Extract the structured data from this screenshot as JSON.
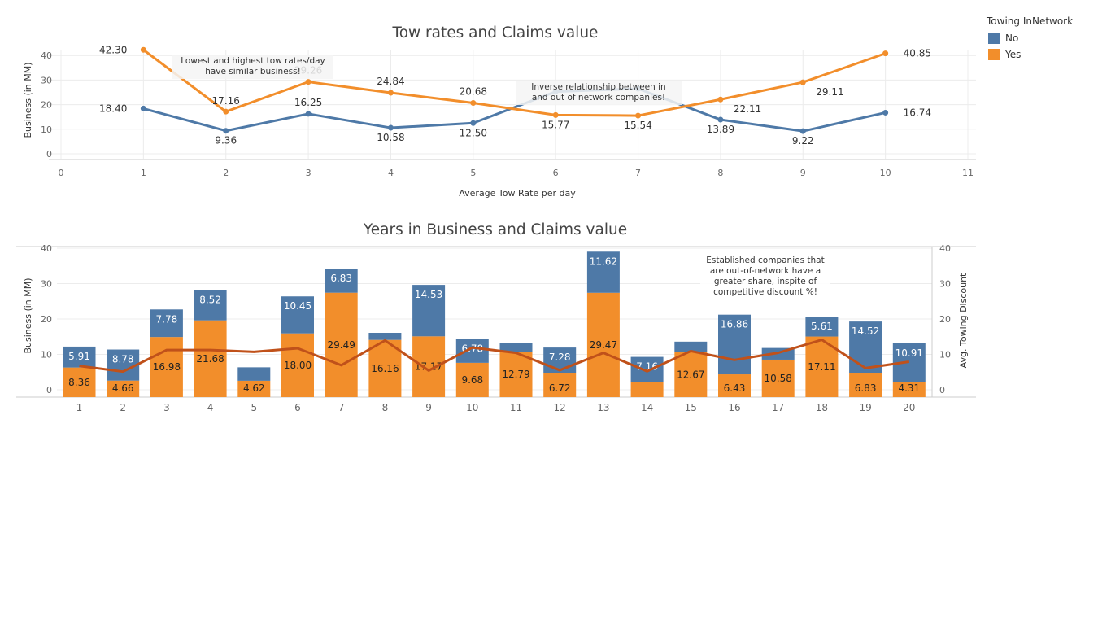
{
  "colors": {
    "no": "#4e79a7",
    "yes": "#f28e2b",
    "discount_line": "#c0511a",
    "grid": "#ececec",
    "axis": "#cccccc",
    "tick": "#666666"
  },
  "legend": {
    "title": "Towing InNetwork",
    "items": [
      {
        "label": "No",
        "color": "#4e79a7"
      },
      {
        "label": "Yes",
        "color": "#f28e2b"
      }
    ]
  },
  "annotations": {
    "top_left": "Lowest and highest tow rates/day\nhave similar business!",
    "top_mid": "Inverse relationship between in\nand out of network companies!",
    "bottom_right": "Established companies that\nare out-of-network have a\ngreater share, inspite of\ncompetitive discount %!"
  },
  "chart_data": [
    {
      "type": "line",
      "title": "Tow rates and Claims value",
      "xlabel": "Average Tow Rate per day",
      "ylabel": "Business (in MM)",
      "xlim": [
        0,
        11
      ],
      "ylim": [
        0,
        45
      ],
      "x_ticks": [
        0,
        1,
        2,
        3,
        4,
        5,
        6,
        7,
        8,
        9,
        10,
        11
      ],
      "y_ticks": [
        0,
        10,
        20,
        30,
        40
      ],
      "x": [
        1,
        2,
        3,
        4,
        5,
        6,
        7,
        8,
        9,
        10
      ],
      "series": [
        {
          "name": "No",
          "values": [
            18.4,
            9.36,
            16.25,
            10.58,
            12.5,
            25.3,
            26.5,
            13.89,
            9.22,
            16.74
          ],
          "labels": [
            "18.40",
            "9.36",
            "16.25",
            "10.58",
            "12.50",
            "",
            "",
            "13.89",
            "9.22",
            "16.74"
          ]
        },
        {
          "name": "Yes",
          "values": [
            42.3,
            17.16,
            29.26,
            24.84,
            20.68,
            15.77,
            15.54,
            22.11,
            29.11,
            40.85
          ],
          "labels": [
            "42.30",
            "17.16",
            "29.26",
            "24.84",
            "20.68",
            "15.77",
            "15.54",
            "22.11",
            "29.11",
            "40.85"
          ]
        }
      ]
    },
    {
      "type": "bar",
      "stacked": true,
      "title": "Years in Business and Claims value",
      "ylabel": "Business (in MM)",
      "y2label": "Avg. Towing Discount",
      "ylim": [
        0,
        42
      ],
      "y_ticks": [
        0,
        10,
        20,
        30,
        40
      ],
      "y2lim": [
        0,
        42
      ],
      "y2_ticks": [
        0,
        10,
        20,
        30,
        40
      ],
      "categories": [
        "1",
        "2",
        "3",
        "4",
        "5",
        "6",
        "7",
        "8",
        "9",
        "10",
        "11",
        "12",
        "13",
        "14",
        "15",
        "16",
        "17",
        "18",
        "19",
        "20"
      ],
      "series": [
        {
          "name": "Yes",
          "values": [
            8.36,
            4.66,
            16.98,
            21.68,
            4.62,
            18.0,
            29.49,
            16.16,
            17.17,
            9.68,
            12.79,
            6.72,
            29.47,
            4.2,
            12.67,
            6.43,
            10.58,
            17.11,
            6.83,
            4.31
          ],
          "labels": [
            "8.36",
            "4.66",
            "16.98",
            "21.68",
            "4.62",
            "18.00",
            "29.49",
            "16.16",
            "17.17",
            "9.68",
            "12.79",
            "6.72",
            "29.47",
            "",
            "12.67",
            "6.43",
            "10.58",
            "17.11",
            "6.83",
            "4.31"
          ]
        },
        {
          "name": "No",
          "values": [
            5.91,
            8.78,
            7.78,
            8.52,
            3.8,
            10.45,
            6.83,
            2.0,
            14.53,
            6.78,
            2.5,
            7.28,
            11.62,
            7.16,
            3.0,
            16.86,
            3.3,
            5.61,
            14.52,
            10.91
          ],
          "labels": [
            "5.91",
            "8.78",
            "7.78",
            "8.52",
            "",
            "10.45",
            "6.83",
            "",
            "14.53",
            "6.78",
            "",
            "7.28",
            "11.62",
            "7.16",
            "",
            "16.86",
            "",
            "5.61",
            "14.52",
            "10.91"
          ]
        }
      ],
      "discount": {
        "name": "Avg. Towing Discount",
        "values": [
          8.8,
          7.2,
          13.3,
          13.3,
          12.8,
          13.8,
          9.0,
          16.0,
          7.5,
          14.0,
          12.5,
          7.6,
          12.5,
          7.3,
          13.0,
          10.5,
          12.5,
          16.2,
          8.2,
          10.0
        ]
      }
    }
  ]
}
